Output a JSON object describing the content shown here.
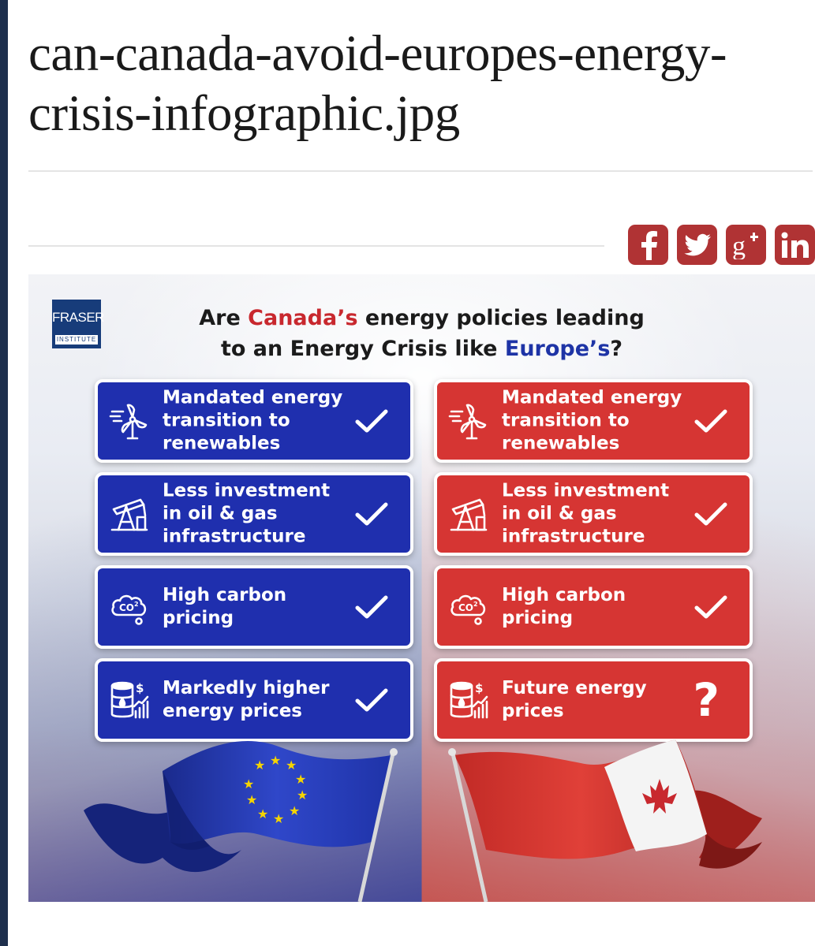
{
  "page": {
    "title": "can-canada-avoid-europes-energy-crisis-infographic.jpg"
  },
  "share": [
    {
      "label": "f",
      "icon": "facebook-icon"
    },
    {
      "label": "twitter",
      "icon": "twitter-icon"
    },
    {
      "label": "g+",
      "icon": "google-plus-icon"
    },
    {
      "label": "in",
      "icon": "linkedin-icon"
    }
  ],
  "infographic": {
    "logo": {
      "word": "FRASER",
      "sub": "INSTITUTE"
    },
    "headline": {
      "part1": "Are ",
      "canada": "Canada’s",
      "part2": " energy policies leading",
      "part3": "to an Energy Crisis like ",
      "europe": "Europe’s",
      "part4": "?"
    },
    "europe_items": [
      {
        "text": "Mandated energy transition to renewables",
        "status": "check",
        "icon": "wind-turbine-icon"
      },
      {
        "text": "Less investment in oil & gas infrastructure",
        "status": "check",
        "icon": "oil-pump-icon"
      },
      {
        "text": "High carbon pricing",
        "status": "check",
        "icon": "co2-cloud-icon"
      },
      {
        "text": "Markedly higher energy prices",
        "status": "check",
        "icon": "oil-barrel-price-icon"
      }
    ],
    "canada_items": [
      {
        "text": "Mandated energy transition to renewables",
        "status": "check",
        "icon": "wind-turbine-icon"
      },
      {
        "text": "Less investment in oil & gas infrastructure",
        "status": "check",
        "icon": "oil-pump-icon"
      },
      {
        "text": "High carbon pricing",
        "status": "check",
        "icon": "co2-cloud-icon"
      },
      {
        "text": "Future energy prices",
        "status": "?",
        "icon": "oil-barrel-price-icon"
      }
    ],
    "colors": {
      "eu_blue": "#1f2fae",
      "ca_red": "#d63533",
      "share_red": "#b03334"
    }
  }
}
